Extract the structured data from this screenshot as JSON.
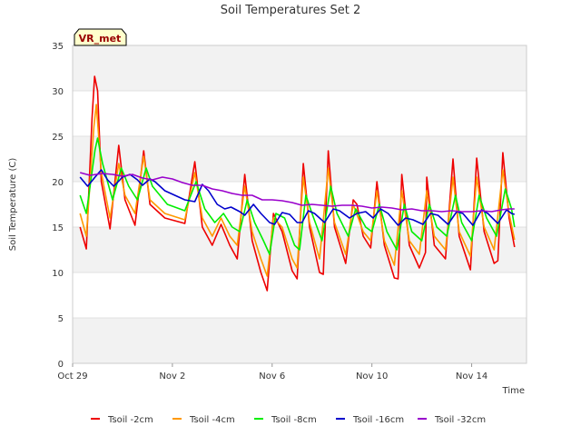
{
  "chart_data": {
    "type": "line",
    "title": "Soil Temperatures Set 2",
    "xlabel": "Time",
    "ylabel": "Soil Temperature (C)",
    "badge": "VR_met",
    "ylim": [
      0,
      35
    ],
    "yticks": [
      0,
      5,
      10,
      15,
      20,
      25,
      30,
      35
    ],
    "xlim": [
      0,
      18.2
    ],
    "xticks": [
      {
        "day": 0,
        "label": "Oct 29"
      },
      {
        "day": 4,
        "label": "Nov 2"
      },
      {
        "day": 8,
        "label": "Nov 6"
      },
      {
        "day": 12,
        "label": "Nov 10"
      },
      {
        "day": 16,
        "label": "Nov 14"
      }
    ],
    "x_unit": "days since Oct 29",
    "grid": true,
    "legend_position": "bottom",
    "series": [
      {
        "name": "Tsoil -2cm",
        "color": "#ee0000",
        "points": [
          [
            0.3,
            15.0
          ],
          [
            0.55,
            12.6
          ],
          [
            0.78,
            27.0
          ],
          [
            0.88,
            31.6
          ],
          [
            1.0,
            30.0
          ],
          [
            1.15,
            20.0
          ],
          [
            1.5,
            14.8
          ],
          [
            1.85,
            24.0
          ],
          [
            2.1,
            18.0
          ],
          [
            2.5,
            15.2
          ],
          [
            2.85,
            23.4
          ],
          [
            3.1,
            17.5
          ],
          [
            3.7,
            16.0
          ],
          [
            4.5,
            15.4
          ],
          [
            4.9,
            22.2
          ],
          [
            5.2,
            15.0
          ],
          [
            5.6,
            13.0
          ],
          [
            5.95,
            15.3
          ],
          [
            6.3,
            13.0
          ],
          [
            6.6,
            11.5
          ],
          [
            6.9,
            20.8
          ],
          [
            7.2,
            13.5
          ],
          [
            7.55,
            10.0
          ],
          [
            7.8,
            8.0
          ],
          [
            8.05,
            16.5
          ],
          [
            8.4,
            14.5
          ],
          [
            8.8,
            10.2
          ],
          [
            9.0,
            9.3
          ],
          [
            9.25,
            22.0
          ],
          [
            9.5,
            15.0
          ],
          [
            9.9,
            10.0
          ],
          [
            10.05,
            9.8
          ],
          [
            10.25,
            23.4
          ],
          [
            10.5,
            15.0
          ],
          [
            10.95,
            11.0
          ],
          [
            11.25,
            18.0
          ],
          [
            11.4,
            17.5
          ],
          [
            11.65,
            14.0
          ],
          [
            11.95,
            12.7
          ],
          [
            12.2,
            20.0
          ],
          [
            12.5,
            13.0
          ],
          [
            12.9,
            9.4
          ],
          [
            13.05,
            9.3
          ],
          [
            13.2,
            20.8
          ],
          [
            13.5,
            13.0
          ],
          [
            13.9,
            10.5
          ],
          [
            14.15,
            12.2
          ],
          [
            14.2,
            20.5
          ],
          [
            14.5,
            13.0
          ],
          [
            14.95,
            11.5
          ],
          [
            15.25,
            22.5
          ],
          [
            15.5,
            14.0
          ],
          [
            15.95,
            10.3
          ],
          [
            16.2,
            22.6
          ],
          [
            16.5,
            14.5
          ],
          [
            16.9,
            11.0
          ],
          [
            17.05,
            11.3
          ],
          [
            17.25,
            23.2
          ],
          [
            17.5,
            16.0
          ],
          [
            17.72,
            12.8
          ]
        ]
      },
      {
        "name": "Tsoil -4cm",
        "color": "#ff9900",
        "points": [
          [
            0.3,
            16.5
          ],
          [
            0.55,
            14.0
          ],
          [
            0.85,
            26.0
          ],
          [
            0.95,
            28.5
          ],
          [
            1.15,
            21.0
          ],
          [
            1.5,
            16.0
          ],
          [
            1.85,
            22.0
          ],
          [
            2.1,
            18.5
          ],
          [
            2.5,
            16.5
          ],
          [
            2.85,
            22.8
          ],
          [
            3.1,
            18.0
          ],
          [
            3.7,
            16.5
          ],
          [
            4.5,
            15.8
          ],
          [
            4.9,
            21.0
          ],
          [
            5.2,
            16.0
          ],
          [
            5.6,
            14.0
          ],
          [
            5.95,
            16.0
          ],
          [
            6.3,
            14.0
          ],
          [
            6.6,
            13.0
          ],
          [
            6.9,
            19.5
          ],
          [
            7.2,
            14.5
          ],
          [
            7.55,
            11.5
          ],
          [
            7.8,
            9.6
          ],
          [
            8.05,
            16.0
          ],
          [
            8.4,
            15.0
          ],
          [
            8.8,
            11.5
          ],
          [
            9.0,
            10.5
          ],
          [
            9.25,
            20.5
          ],
          [
            9.5,
            15.5
          ],
          [
            9.9,
            11.5
          ],
          [
            10.25,
            21.5
          ],
          [
            10.5,
            15.5
          ],
          [
            10.95,
            12.0
          ],
          [
            11.25,
            17.5
          ],
          [
            11.65,
            14.5
          ],
          [
            11.95,
            13.5
          ],
          [
            12.2,
            19.0
          ],
          [
            12.5,
            13.5
          ],
          [
            12.9,
            10.8
          ],
          [
            13.2,
            19.0
          ],
          [
            13.5,
            13.5
          ],
          [
            13.9,
            12.0
          ],
          [
            14.2,
            19.0
          ],
          [
            14.5,
            14.0
          ],
          [
            14.95,
            12.5
          ],
          [
            15.25,
            20.5
          ],
          [
            15.5,
            14.5
          ],
          [
            15.95,
            11.8
          ],
          [
            16.2,
            20.5
          ],
          [
            16.5,
            15.0
          ],
          [
            16.9,
            12.5
          ],
          [
            17.25,
            21.3
          ],
          [
            17.5,
            16.5
          ],
          [
            17.72,
            13.6
          ]
        ]
      },
      {
        "name": "Tsoil -8cm",
        "color": "#00ee00",
        "points": [
          [
            0.3,
            18.5
          ],
          [
            0.55,
            16.5
          ],
          [
            0.9,
            23.5
          ],
          [
            1.0,
            24.8
          ],
          [
            1.2,
            22.0
          ],
          [
            1.6,
            18.0
          ],
          [
            1.95,
            21.5
          ],
          [
            2.25,
            19.5
          ],
          [
            2.6,
            18.0
          ],
          [
            2.95,
            21.5
          ],
          [
            3.2,
            19.5
          ],
          [
            3.8,
            17.5
          ],
          [
            4.5,
            16.8
          ],
          [
            4.95,
            20.0
          ],
          [
            5.3,
            17.0
          ],
          [
            5.7,
            15.5
          ],
          [
            6.05,
            16.5
          ],
          [
            6.4,
            15.0
          ],
          [
            6.7,
            14.5
          ],
          [
            7.0,
            18.0
          ],
          [
            7.3,
            15.5
          ],
          [
            7.65,
            13.5
          ],
          [
            7.9,
            12.0
          ],
          [
            8.15,
            16.5
          ],
          [
            8.5,
            16.0
          ],
          [
            8.9,
            13.0
          ],
          [
            9.1,
            12.5
          ],
          [
            9.35,
            18.5
          ],
          [
            9.6,
            16.5
          ],
          [
            10.0,
            13.5
          ],
          [
            10.35,
            19.5
          ],
          [
            10.6,
            16.5
          ],
          [
            11.05,
            14.0
          ],
          [
            11.35,
            17.0
          ],
          [
            11.75,
            15.0
          ],
          [
            12.0,
            14.5
          ],
          [
            12.3,
            17.5
          ],
          [
            12.6,
            14.5
          ],
          [
            13.0,
            12.5
          ],
          [
            13.3,
            17.5
          ],
          [
            13.6,
            14.5
          ],
          [
            14.0,
            13.5
          ],
          [
            14.3,
            17.5
          ],
          [
            14.6,
            15.0
          ],
          [
            15.0,
            14.0
          ],
          [
            15.35,
            18.5
          ],
          [
            15.6,
            15.5
          ],
          [
            16.0,
            13.5
          ],
          [
            16.3,
            18.5
          ],
          [
            16.6,
            16.0
          ],
          [
            17.0,
            14.0
          ],
          [
            17.35,
            19.2
          ],
          [
            17.6,
            17.0
          ],
          [
            17.72,
            15.0
          ]
        ]
      },
      {
        "name": "Tsoil -16cm",
        "color": "#0000cc",
        "points": [
          [
            0.3,
            20.5
          ],
          [
            0.6,
            19.5
          ],
          [
            0.9,
            20.5
          ],
          [
            1.15,
            21.3
          ],
          [
            1.4,
            20.2
          ],
          [
            1.65,
            19.5
          ],
          [
            2.0,
            20.5
          ],
          [
            2.3,
            20.8
          ],
          [
            2.6,
            20.2
          ],
          [
            2.8,
            19.6
          ],
          [
            3.1,
            20.3
          ],
          [
            3.3,
            20.0
          ],
          [
            3.7,
            19.0
          ],
          [
            4.1,
            18.5
          ],
          [
            4.5,
            18.0
          ],
          [
            4.9,
            17.8
          ],
          [
            5.2,
            19.7
          ],
          [
            5.45,
            19.0
          ],
          [
            5.8,
            17.5
          ],
          [
            6.1,
            17.0
          ],
          [
            6.35,
            17.2
          ],
          [
            6.7,
            16.7
          ],
          [
            6.9,
            16.3
          ],
          [
            7.25,
            17.5
          ],
          [
            7.55,
            16.5
          ],
          [
            7.9,
            15.5
          ],
          [
            8.1,
            15.3
          ],
          [
            8.4,
            16.6
          ],
          [
            8.7,
            16.4
          ],
          [
            9.0,
            15.5
          ],
          [
            9.2,
            15.5
          ],
          [
            9.45,
            16.8
          ],
          [
            9.7,
            16.5
          ],
          [
            10.1,
            15.5
          ],
          [
            10.45,
            17.0
          ],
          [
            10.7,
            16.8
          ],
          [
            11.1,
            16.0
          ],
          [
            11.4,
            16.5
          ],
          [
            11.75,
            16.7
          ],
          [
            12.05,
            16.0
          ],
          [
            12.35,
            17.0
          ],
          [
            12.65,
            16.5
          ],
          [
            13.05,
            15.2
          ],
          [
            13.35,
            16.0
          ],
          [
            13.65,
            15.8
          ],
          [
            14.05,
            15.3
          ],
          [
            14.35,
            16.5
          ],
          [
            14.65,
            16.3
          ],
          [
            15.05,
            15.3
          ],
          [
            15.4,
            16.7
          ],
          [
            15.65,
            16.5
          ],
          [
            16.05,
            15.2
          ],
          [
            16.4,
            16.9
          ],
          [
            16.65,
            16.5
          ],
          [
            17.05,
            15.4
          ],
          [
            17.4,
            16.9
          ],
          [
            17.6,
            16.5
          ],
          [
            17.72,
            16.4
          ]
        ]
      },
      {
        "name": "Tsoil -32cm",
        "color": "#9900cc",
        "points": [
          [
            0.3,
            21.0
          ],
          [
            0.7,
            20.7
          ],
          [
            1.2,
            20.9
          ],
          [
            1.6,
            20.8
          ],
          [
            2.0,
            20.6
          ],
          [
            2.4,
            20.8
          ],
          [
            2.8,
            20.4
          ],
          [
            3.2,
            20.2
          ],
          [
            3.6,
            20.5
          ],
          [
            4.0,
            20.3
          ],
          [
            4.4,
            19.9
          ],
          [
            4.8,
            19.6
          ],
          [
            5.2,
            19.6
          ],
          [
            5.6,
            19.2
          ],
          [
            6.0,
            19.0
          ],
          [
            6.4,
            18.7
          ],
          [
            6.8,
            18.5
          ],
          [
            7.2,
            18.5
          ],
          [
            7.6,
            18.0
          ],
          [
            8.0,
            18.0
          ],
          [
            8.4,
            17.9
          ],
          [
            8.8,
            17.7
          ],
          [
            9.2,
            17.4
          ],
          [
            9.6,
            17.5
          ],
          [
            10.0,
            17.4
          ],
          [
            10.4,
            17.3
          ],
          [
            10.8,
            17.4
          ],
          [
            11.2,
            17.4
          ],
          [
            11.6,
            17.3
          ],
          [
            12.0,
            17.1
          ],
          [
            12.4,
            17.2
          ],
          [
            12.8,
            17.1
          ],
          [
            13.2,
            16.9
          ],
          [
            13.6,
            17.0
          ],
          [
            14.0,
            16.8
          ],
          [
            14.4,
            16.8
          ],
          [
            14.8,
            16.7
          ],
          [
            15.2,
            16.8
          ],
          [
            15.6,
            16.7
          ],
          [
            16.0,
            16.7
          ],
          [
            16.4,
            16.8
          ],
          [
            16.8,
            16.7
          ],
          [
            17.2,
            16.9
          ],
          [
            17.5,
            17.0
          ],
          [
            17.72,
            17.0
          ]
        ]
      }
    ]
  }
}
